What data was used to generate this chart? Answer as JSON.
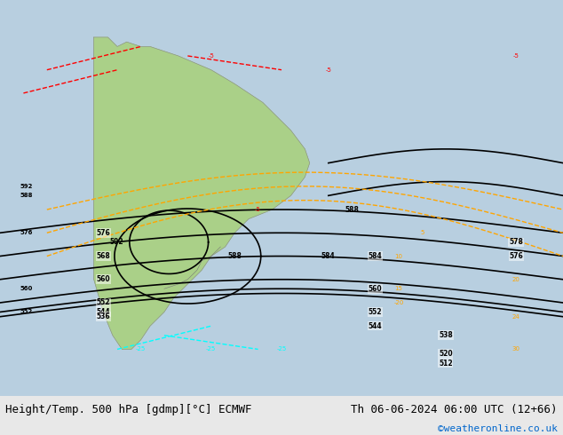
{
  "title_left": "Height/Temp. 500 hPa [gdmp][°C] ECMWF",
  "title_right": "Th 06-06-2024 06:00 UTC (12+66)",
  "credit": "©weatheronline.co.uk",
  "credit_color": "#0066cc",
  "text_color": "#000000",
  "bg_color": "#e8e8e8",
  "map_bg": "#c8d8e8",
  "land_color": "#d0e8c0",
  "figsize": [
    6.34,
    4.9
  ],
  "dpi": 100,
  "bottom_bar_color": "#e0e0e0",
  "font_size_label": 9,
  "font_size_credit": 8
}
